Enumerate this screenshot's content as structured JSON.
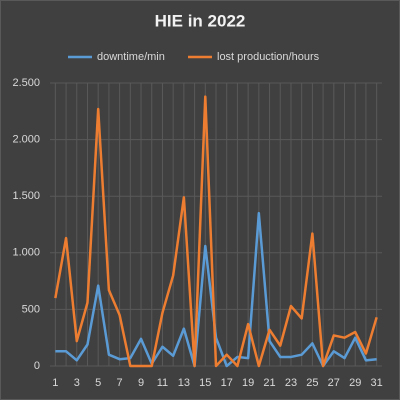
{
  "chart_data": {
    "type": "line",
    "title": "HIE in 2022",
    "categories": [
      "1",
      null,
      "3",
      null,
      "5",
      null,
      "7",
      null,
      "9",
      null,
      "11",
      null,
      "13",
      null,
      "15",
      null,
      "17",
      null,
      "19",
      null,
      "21",
      null,
      "23",
      null,
      "25",
      null,
      "27",
      null,
      "29",
      null,
      "31"
    ],
    "series": [
      {
        "name": "downtime/min",
        "color": "#5b9bd5",
        "values": [
          130,
          130,
          50,
          190,
          710,
          100,
          60,
          70,
          240,
          20,
          170,
          90,
          330,
          0,
          1060,
          250,
          0,
          80,
          70,
          1350,
          220,
          80,
          80,
          100,
          200,
          0,
          130,
          70,
          250,
          50,
          60
        ]
      },
      {
        "name": "lost production/hours",
        "color": "#ed7d31",
        "values": [
          600,
          1130,
          220,
          560,
          2270,
          670,
          450,
          0,
          0,
          0,
          470,
          800,
          1490,
          0,
          2380,
          0,
          100,
          0,
          370,
          0,
          320,
          180,
          530,
          420,
          1170,
          0,
          270,
          250,
          300,
          110,
          430
        ]
      }
    ],
    "ylim": [
      0,
      2500
    ],
    "yticks": [
      0,
      500,
      {
        "value": 1000,
        "label": "1.000"
      },
      {
        "value": 1500,
        "label": "1.500"
      },
      {
        "value": 2000,
        "label": "2.000"
      },
      {
        "value": 2500,
        "label": "2.500"
      }
    ],
    "grid": true,
    "legend": "top"
  }
}
